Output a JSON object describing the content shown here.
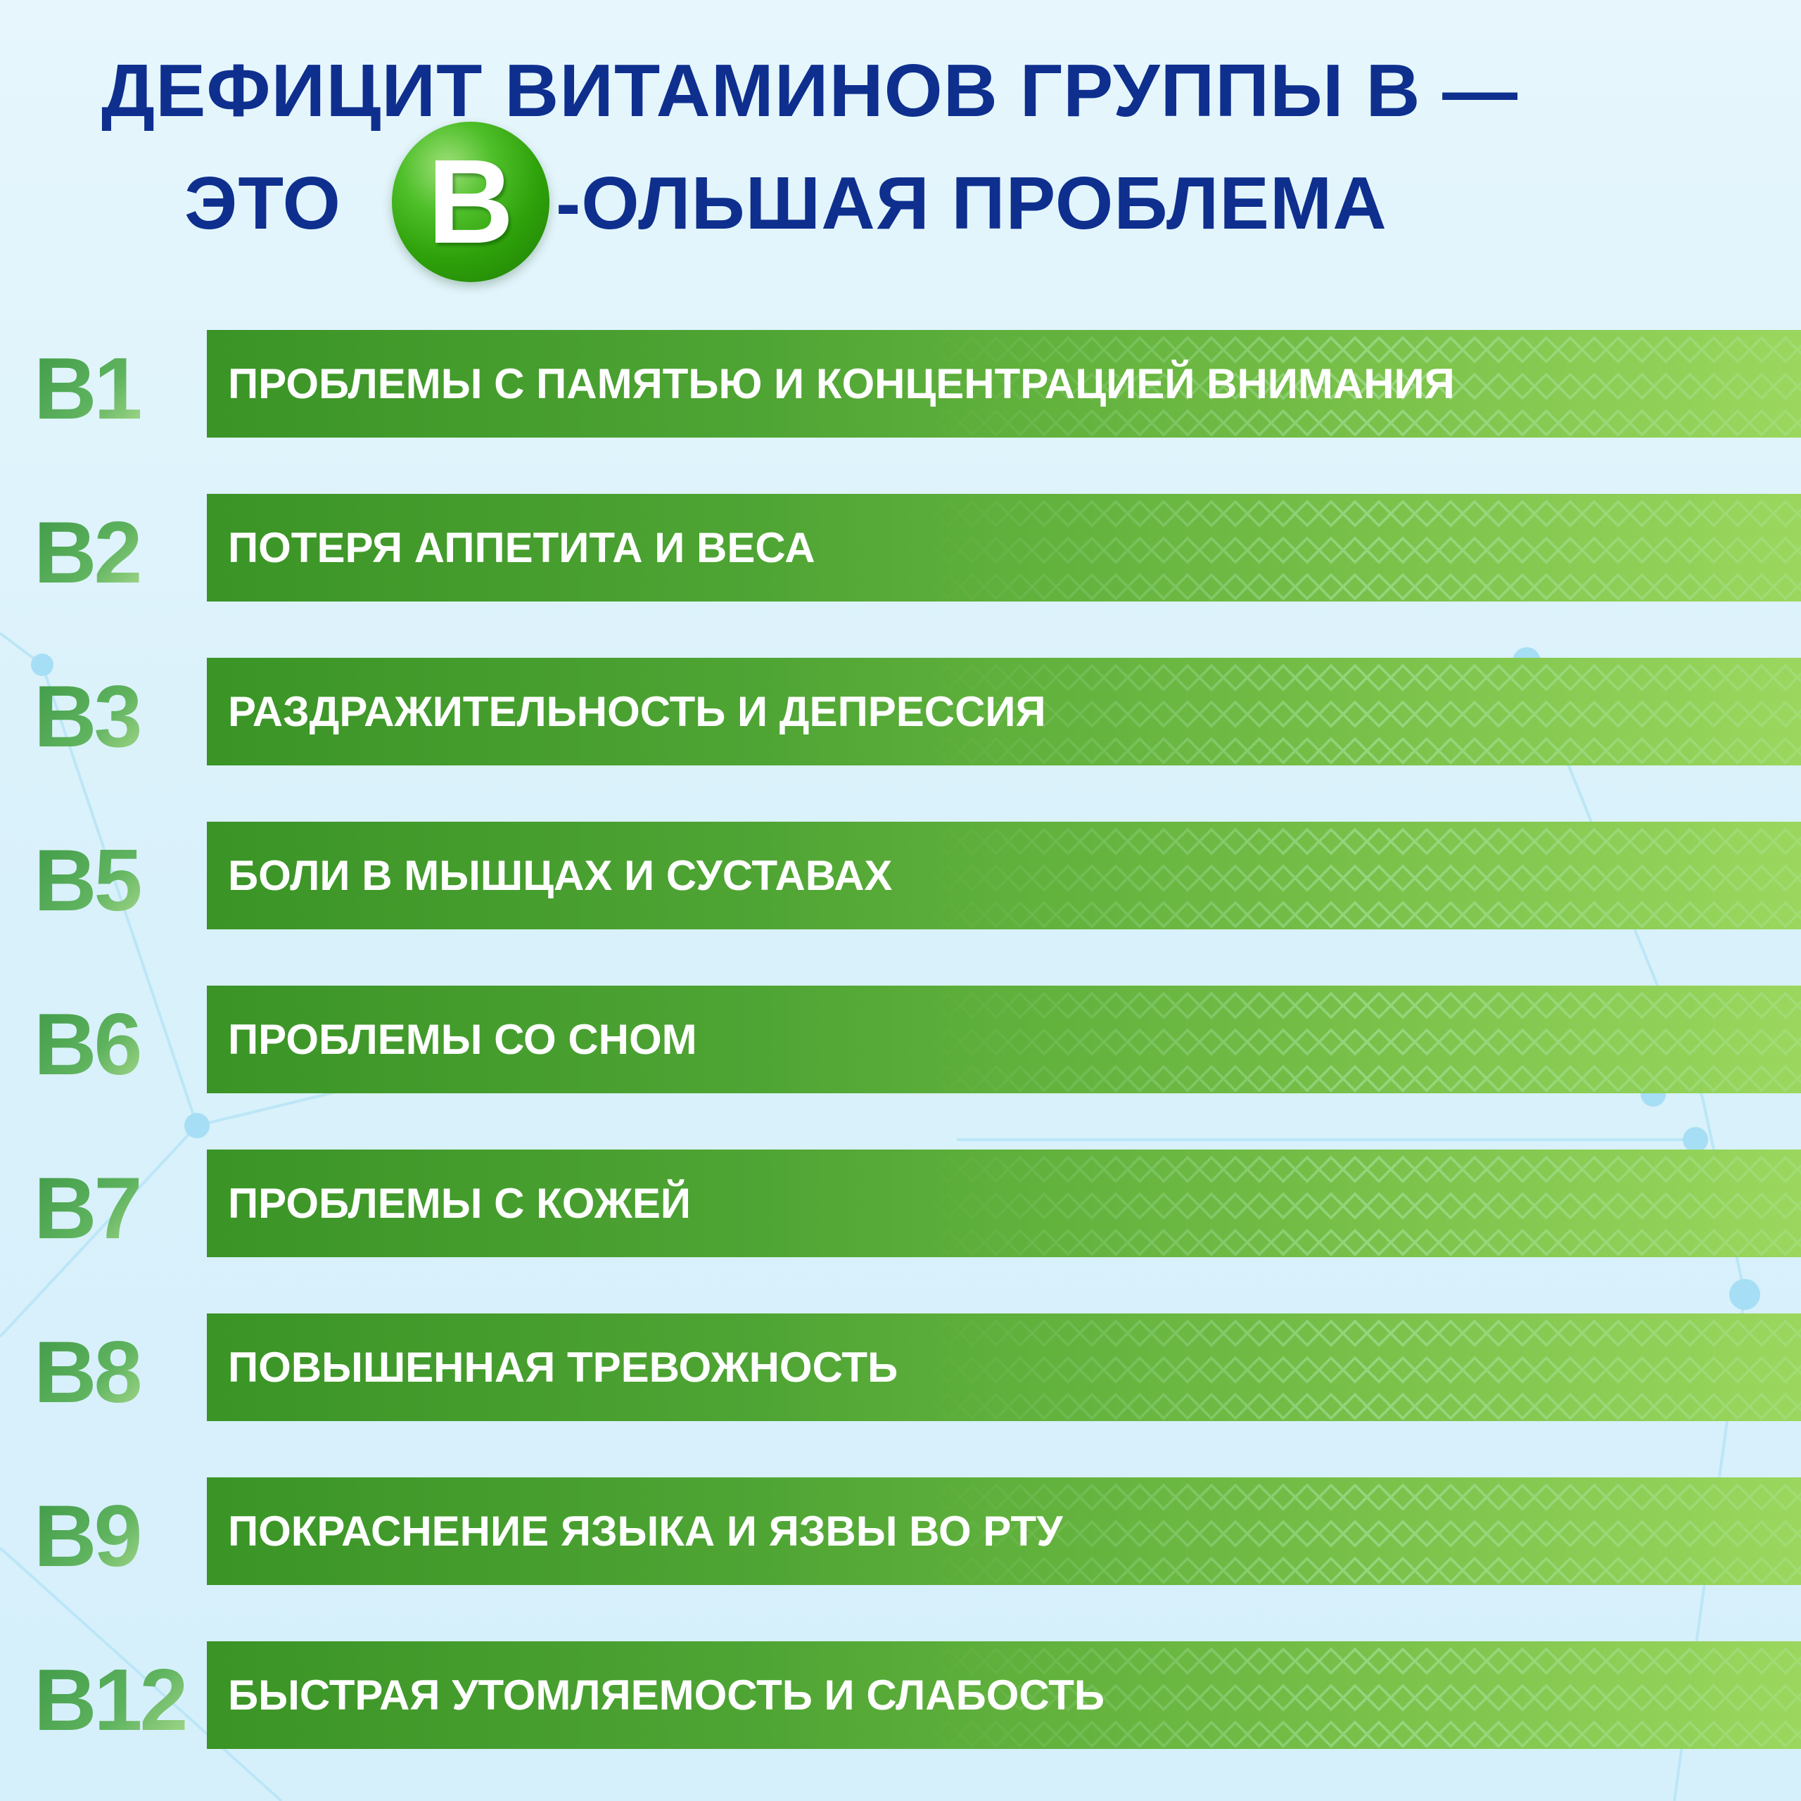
{
  "title": {
    "line1": "ДЕФИЦИТ ВИТАМИНОВ ГРУППЫ В —",
    "line2_prefix": "ЭТО",
    "badge_letter": "B",
    "line2_suffix": "-ОЛЬШАЯ ПРОБЛЕМА"
  },
  "colors": {
    "title": "#0e2f8e",
    "bar_start": "#3a9426",
    "bar_end": "#9bd75e",
    "badge": "#2ea10a"
  },
  "items": [
    {
      "code": "B1",
      "text": "ПРОБЛЕМЫ С ПАМЯТЬЮ И КОНЦЕНТРАЦИЕЙ ВНИМАНИЯ"
    },
    {
      "code": "B2",
      "text": "ПОТЕРЯ АППЕТИТА И ВЕСА"
    },
    {
      "code": "B3",
      "text": "РАЗДРАЖИТЕЛЬНОСТЬ И ДЕПРЕССИЯ"
    },
    {
      "code": "B5",
      "text": "БОЛИ В МЫШЦАХ И СУСТАВАХ"
    },
    {
      "code": "B6",
      "text": "ПРОБЛЕМЫ СО СНОМ"
    },
    {
      "code": "B7",
      "text": "ПРОБЛЕМЫ С КОЖЕЙ"
    },
    {
      "code": "B8",
      "text": "ПОВЫШЕННАЯ ТРЕВОЖНОСТЬ"
    },
    {
      "code": "B9",
      "text": "ПОКРАСНЕНИЕ ЯЗЫКА И ЯЗВЫ ВО РТУ"
    },
    {
      "code": "B12",
      "text": "БЫСТРАЯ УТОМЛЯЕМОСТЬ И СЛАБОСТЬ"
    }
  ]
}
